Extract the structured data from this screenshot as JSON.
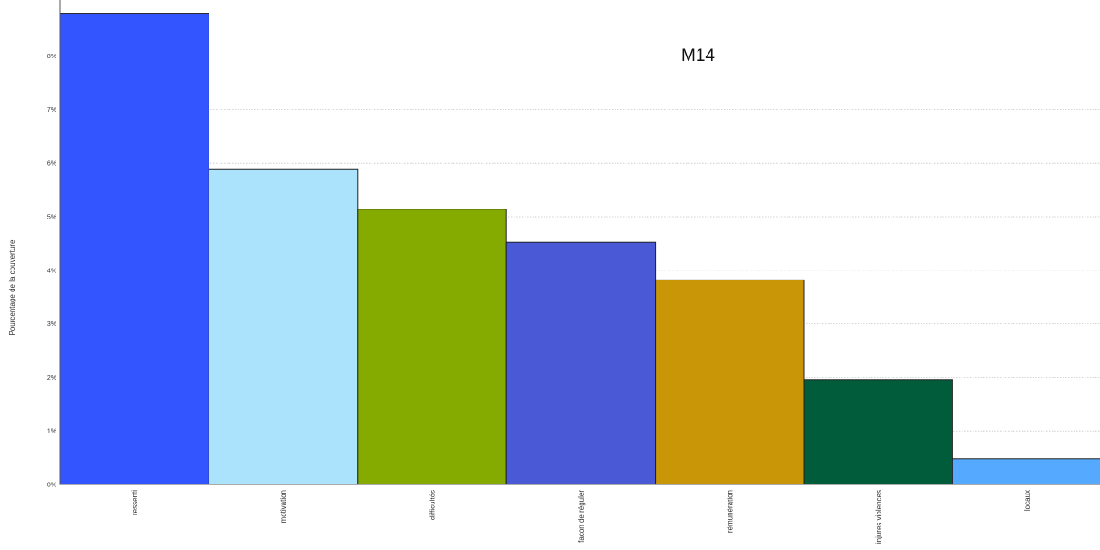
{
  "chart_data": {
    "type": "bar",
    "title": "M14",
    "ylabel": "Pourcentage de la couverture",
    "xlabel": "",
    "ylim": [
      0,
      9
    ],
    "yticks": [
      0,
      1,
      2,
      3,
      4,
      5,
      6,
      7,
      8
    ],
    "ytick_format": "%",
    "grid": true,
    "categories": [
      "ressenti",
      "motivation",
      "difficultés",
      "facon de réguler",
      "rémunération",
      "injures violences",
      "locaux"
    ],
    "values": [
      8.8,
      5.88,
      5.14,
      4.52,
      3.82,
      1.96,
      0.48
    ],
    "colors": [
      "#3355ff",
      "#aae3fb",
      "#85aa00",
      "#4a59d6",
      "#c89606",
      "#005c3a",
      "#55aaff"
    ]
  }
}
